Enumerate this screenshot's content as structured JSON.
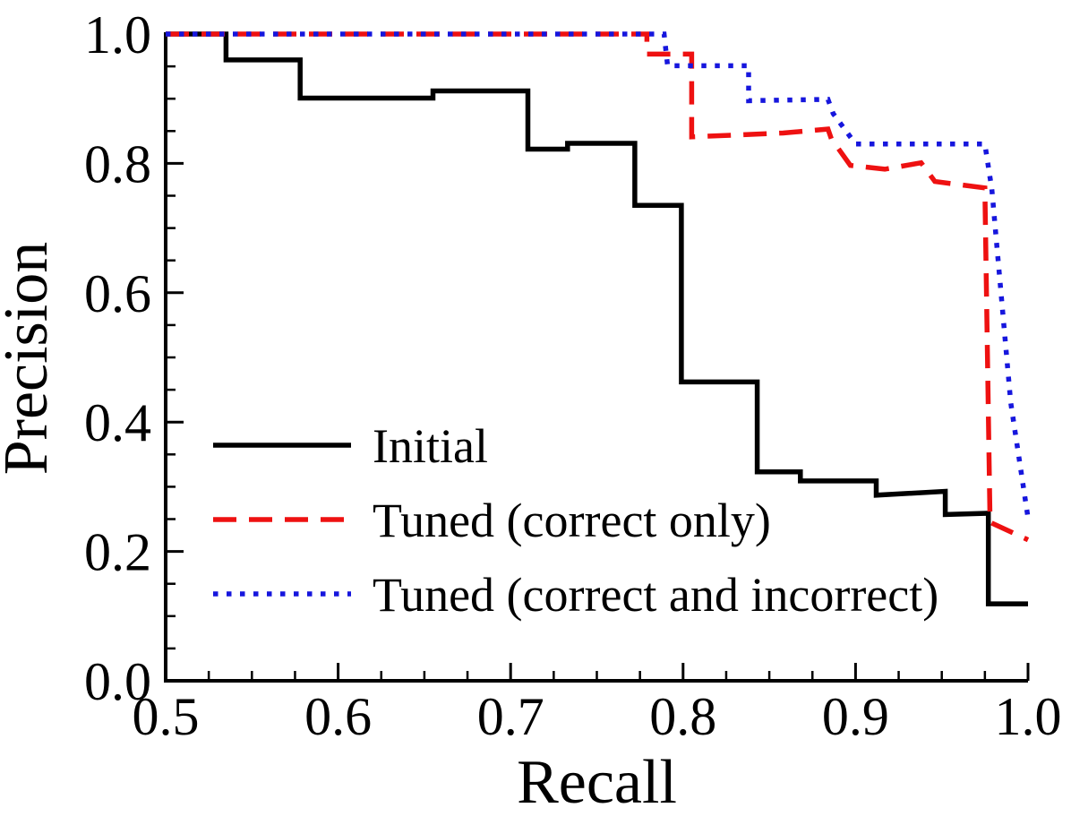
{
  "figure": {
    "background": "#ffffff"
  },
  "chart_data": {
    "type": "line",
    "subtype": "precision-recall-step-curve",
    "title": "",
    "xlabel": "Recall",
    "ylabel": "Precision",
    "xlim": [
      0.5,
      1.0
    ],
    "ylim": [
      0.0,
      1.0
    ],
    "xticks": [
      0.5,
      0.6,
      0.7,
      0.8,
      0.9,
      1.0
    ],
    "xtick_labels": [
      "0.5",
      "0.6",
      "0.7",
      "0.8",
      "0.9",
      "1.0"
    ],
    "yticks": [
      0.0,
      0.2,
      0.4,
      0.6,
      0.8,
      1.0
    ],
    "ytick_labels": [
      "0.0",
      "0.2",
      "0.4",
      "0.6",
      "0.8",
      "1.0"
    ],
    "x_minor_step": 0.025,
    "y_minor_step": 0.05,
    "grid": false,
    "legend_position": "lower-left",
    "axis_color": "#000000",
    "series": [
      {
        "id": "initial",
        "name": "Initial",
        "color": "#000000",
        "style": "solid",
        "points": [
          [
            0.5,
            1.0
          ],
          [
            0.535,
            1.0
          ],
          [
            0.535,
            0.96
          ],
          [
            0.578,
            0.96
          ],
          [
            0.578,
            0.901
          ],
          [
            0.655,
            0.901
          ],
          [
            0.655,
            0.912
          ],
          [
            0.71,
            0.912
          ],
          [
            0.71,
            0.822
          ],
          [
            0.733,
            0.822
          ],
          [
            0.733,
            0.831
          ],
          [
            0.772,
            0.831
          ],
          [
            0.772,
            0.735
          ],
          [
            0.799,
            0.735
          ],
          [
            0.799,
            0.462
          ],
          [
            0.843,
            0.462
          ],
          [
            0.843,
            0.323
          ],
          [
            0.868,
            0.323
          ],
          [
            0.868,
            0.309
          ],
          [
            0.912,
            0.309
          ],
          [
            0.912,
            0.287
          ],
          [
            0.952,
            0.293
          ],
          [
            0.952,
            0.257
          ],
          [
            0.977,
            0.259
          ],
          [
            0.977,
            0.119
          ],
          [
            1.0,
            0.119
          ]
        ]
      },
      {
        "id": "tuned-correct-only",
        "name": "Tuned (correct only)",
        "color": "#ee1111",
        "style": "dashed",
        "points": [
          [
            0.5,
            1.0
          ],
          [
            0.779,
            1.0
          ],
          [
            0.779,
            0.969
          ],
          [
            0.805,
            0.969
          ],
          [
            0.805,
            0.841
          ],
          [
            0.858,
            0.847
          ],
          [
            0.884,
            0.853
          ],
          [
            0.886,
            0.838
          ],
          [
            0.897,
            0.797
          ],
          [
            0.917,
            0.791
          ],
          [
            0.938,
            0.801
          ],
          [
            0.946,
            0.772
          ],
          [
            0.975,
            0.762
          ],
          [
            0.978,
            0.245
          ],
          [
            1.0,
            0.218
          ]
        ]
      },
      {
        "id": "tuned-correct-and-incorrect",
        "name": "Tuned (correct and incorrect)",
        "color": "#1616dd",
        "style": "dotted",
        "points": [
          [
            0.5,
            1.0
          ],
          [
            0.789,
            1.0
          ],
          [
            0.791,
            0.951
          ],
          [
            0.838,
            0.951
          ],
          [
            0.838,
            0.897
          ],
          [
            0.884,
            0.899
          ],
          [
            0.887,
            0.877
          ],
          [
            0.9,
            0.83
          ],
          [
            0.975,
            0.83
          ],
          [
            0.979,
            0.76
          ],
          [
            0.99,
            0.43
          ],
          [
            1.0,
            0.252
          ]
        ]
      }
    ]
  }
}
